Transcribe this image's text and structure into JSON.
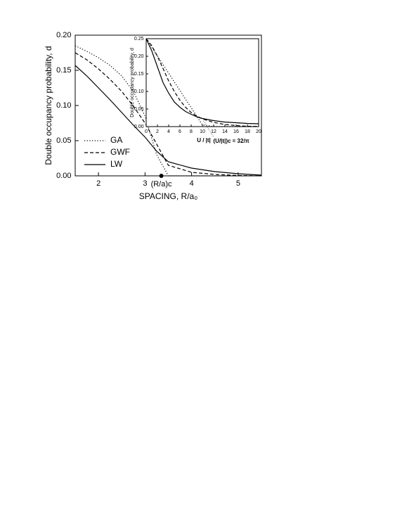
{
  "chart_data": [
    {
      "type": "line",
      "xlabel": "SPACING, R/a₀",
      "ylabel": "Double occupancy probability, d",
      "x": [
        1.5,
        1.75,
        2,
        2.25,
        2.5,
        2.75,
        3,
        3.25,
        3.5,
        4,
        4.5,
        5,
        5.5
      ],
      "series": [
        {
          "name": "GA",
          "color": "#000000",
          "linestyle": "dotted",
          "values": [
            0.185,
            0.177,
            0.168,
            0.157,
            0.142,
            0.12,
            0.085,
            0.03,
            0,
            0,
            0,
            0,
            0
          ]
        },
        {
          "name": "GWF",
          "color": "#000000",
          "linestyle": "dashed",
          "values": [
            0.175,
            0.165,
            0.152,
            0.137,
            0.12,
            0.099,
            0.075,
            0.045,
            0.015,
            0.005,
            0.002,
            0.0005,
            0
          ]
        },
        {
          "name": "LW",
          "color": "#000000",
          "linestyle": "solid",
          "values": [
            0.157,
            0.142,
            0.125,
            0.108,
            0.09,
            0.072,
            0.055,
            0.035,
            0.02,
            0.011,
            0.006,
            0.003,
            0.001
          ]
        }
      ],
      "xlim": [
        1.5,
        5.5
      ],
      "xticks": [
        2,
        3,
        4,
        5
      ],
      "ylim": [
        0,
        0.2
      ],
      "yticks": [
        {
          "value": 0,
          "label": "0.00"
        },
        {
          "value": 0.05,
          "label": "0.05"
        },
        {
          "value": 0.1,
          "label": "0.10"
        },
        {
          "value": 0.15,
          "label": "0.15"
        },
        {
          "value": 0.2,
          "label": "0.20"
        }
      ],
      "legend": "lower left",
      "annotations": [
        {
          "text": "(R/a)c",
          "x": 3.35
        }
      ]
    },
    {
      "type": "line",
      "xlabel": "U / |t|",
      "ylabel": "Double occupancy probability, d",
      "x": [
        0,
        1,
        2,
        3,
        4,
        5,
        6,
        7,
        8,
        9,
        10,
        12,
        14,
        16,
        18,
        20
      ],
      "series": [
        {
          "name": "GA",
          "color": "#000000",
          "linestyle": "dotted",
          "values": [
            0.25,
            0.225,
            0.201,
            0.176,
            0.152,
            0.127,
            0.103,
            0.078,
            0.054,
            0.029,
            0.005,
            0,
            0,
            0,
            0,
            0
          ]
        },
        {
          "name": "GWF",
          "color": "#000000",
          "linestyle": "dashed",
          "values": [
            0.25,
            0.23,
            0.2,
            0.165,
            0.13,
            0.1,
            0.075,
            0.055,
            0.04,
            0.03,
            0.022,
            0.012,
            0.006,
            0.003,
            0.001,
            0.0005
          ]
        },
        {
          "name": "LW",
          "color": "#000000",
          "linestyle": "solid",
          "values": [
            0.25,
            0.215,
            0.17,
            0.125,
            0.095,
            0.07,
            0.055,
            0.043,
            0.035,
            0.028,
            0.023,
            0.017,
            0.013,
            0.011,
            0.009,
            0.008
          ]
        }
      ],
      "xlim": [
        0,
        20
      ],
      "xticks": [
        0,
        2,
        4,
        6,
        8,
        10,
        12,
        14,
        16,
        18,
        20
      ],
      "ylim": [
        0,
        0.25
      ],
      "yticks": [
        {
          "value": 0,
          "label": "0.00"
        },
        {
          "value": 0.05,
          "label": "0.05"
        },
        {
          "value": 0.1,
          "label": "0.10"
        },
        {
          "value": 0.15,
          "label": "0.15"
        },
        {
          "value": 0.2,
          "label": "0.20"
        },
        {
          "value": 0.25,
          "label": "0.25"
        }
      ],
      "annotations": [
        {
          "text": "(U/|t|)c = 32/π",
          "x": 10.19
        }
      ]
    }
  ]
}
